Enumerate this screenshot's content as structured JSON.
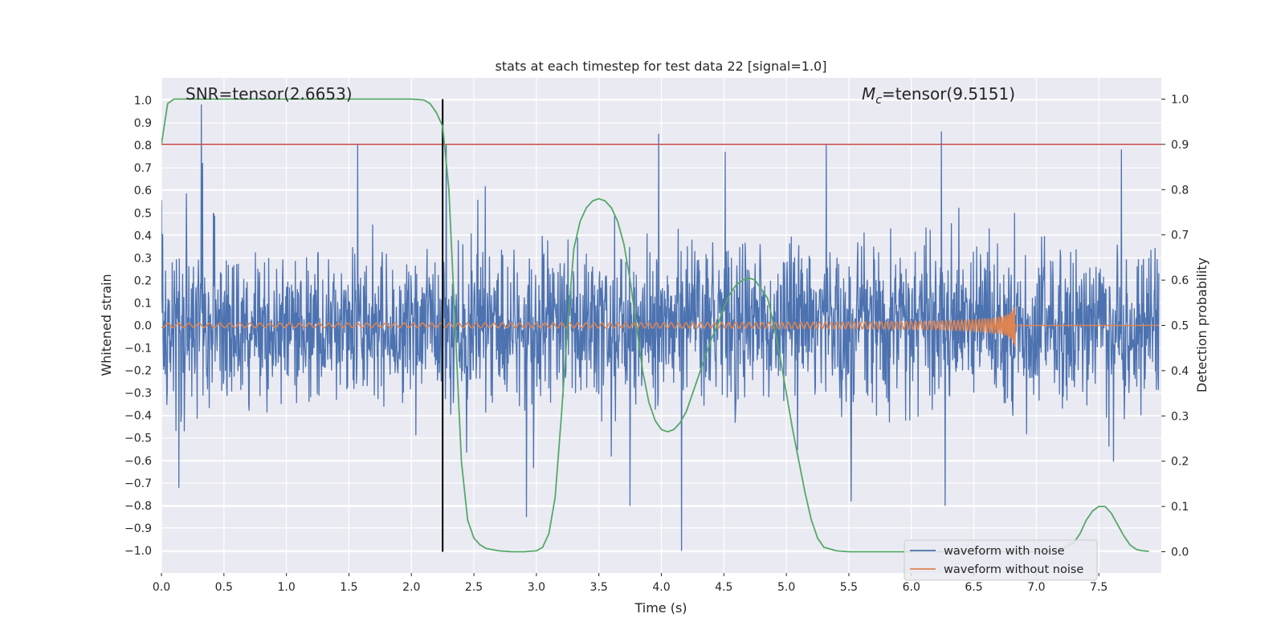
{
  "chart_data": {
    "type": "line",
    "title": "stats at each timestep for test data 22 [signal=1.0]",
    "xlabel": "Time (s)",
    "ylabel": "Whitened strain",
    "y2label": "Detection probability",
    "xlim": [
      0.0,
      8.0
    ],
    "ylim": [
      -1.1,
      1.1
    ],
    "y2lim": [
      -0.047,
      1.047
    ],
    "x_ticks": [
      0.0,
      0.5,
      1.0,
      1.5,
      2.0,
      2.5,
      3.0,
      3.5,
      4.0,
      4.5,
      5.0,
      5.5,
      6.0,
      6.5,
      7.0,
      7.5
    ],
    "x_tick_labels": [
      "0.0",
      "0.5",
      "1.0",
      "1.5",
      "2.0",
      "2.5",
      "3.0",
      "3.5",
      "4.0",
      "4.5",
      "5.0",
      "5.5",
      "6.0",
      "6.5",
      "7.0",
      "7.5"
    ],
    "y_ticks": [
      1.0,
      0.9,
      0.8,
      0.7,
      0.6,
      0.5,
      0.4,
      0.3,
      0.2,
      0.1,
      0.0,
      -0.1,
      -0.2,
      -0.3,
      -0.4,
      -0.5,
      -0.6,
      -0.7,
      -0.8,
      -0.9,
      -1.0
    ],
    "y_tick_labels": [
      "1.0",
      "0.9",
      "0.8",
      "0.7",
      "0.6",
      "0.5",
      "0.4",
      "0.3",
      "0.2",
      "0.1",
      "0.0",
      "−0.1",
      "−0.2",
      "−0.3",
      "−0.4",
      "−0.5",
      "−0.6",
      "−0.7",
      "−0.8",
      "−0.9",
      "−1.0"
    ],
    "y2_ticks": [
      1.0,
      0.9,
      0.8,
      0.7,
      0.6,
      0.5,
      0.4,
      0.3,
      0.2,
      0.1,
      0.0
    ],
    "y2_tick_labels": [
      "1.0",
      "0.9",
      "0.8",
      "0.7",
      "0.6",
      "0.5",
      "0.4",
      "0.3",
      "0.2",
      "0.1",
      "0.0"
    ],
    "grid": true,
    "legend_position": "bottom-right",
    "annotations": {
      "snr": "SNR=tensor(2.6653)",
      "mc_symbol": "M",
      "mc_subscript": "c",
      "mc_value": "=tensor(9.5151)"
    },
    "threshold_line": {
      "y2": 0.9,
      "color": "#c44e52"
    },
    "vertical_marker": {
      "x": 2.25,
      "y2_from": 0.0,
      "y2_to": 1.0,
      "color": "#000000"
    },
    "series": [
      {
        "name": "waveform with noise",
        "color": "#4c72b0",
        "description_axis": "left",
        "noise_envelope_typical": 0.35,
        "peaks": [
          {
            "x": 0.32,
            "y": 0.98
          },
          {
            "x": 0.33,
            "y": 0.72
          },
          {
            "x": 1.57,
            "y": 0.8
          },
          {
            "x": 2.28,
            "y": 0.8
          },
          {
            "x": 3.98,
            "y": 0.85
          },
          {
            "x": 4.51,
            "y": 0.77
          },
          {
            "x": 5.32,
            "y": 0.8
          },
          {
            "x": 6.24,
            "y": 0.86
          },
          {
            "x": 7.68,
            "y": 0.78
          },
          {
            "x": 4.16,
            "y": -1.0
          },
          {
            "x": 0.14,
            "y": -0.72
          },
          {
            "x": 2.92,
            "y": -0.85
          },
          {
            "x": 3.75,
            "y": -0.8
          },
          {
            "x": 5.52,
            "y": -0.78
          },
          {
            "x": 6.27,
            "y": -0.8
          }
        ]
      },
      {
        "name": "waveform without noise",
        "color": "#dd8452",
        "description_axis": "left",
        "chirp_start": 0.0,
        "merger_time": 6.83,
        "amplitude_start": 0.006,
        "amplitude_peak": 0.1
      },
      {
        "name": "detection probability",
        "color": "#55a868",
        "description_axis": "right",
        "x": [
          0.0,
          0.05,
          0.1,
          0.15,
          0.2,
          0.3,
          0.5,
          1.0,
          1.5,
          2.0,
          2.1,
          2.15,
          2.2,
          2.25,
          2.3,
          2.35,
          2.4,
          2.45,
          2.5,
          2.55,
          2.6,
          2.7,
          2.8,
          2.9,
          3.0,
          3.05,
          3.1,
          3.15,
          3.2,
          3.25,
          3.3,
          3.35,
          3.4,
          3.45,
          3.5,
          3.55,
          3.6,
          3.65,
          3.7,
          3.75,
          3.8,
          3.85,
          3.9,
          3.95,
          4.0,
          4.05,
          4.1,
          4.15,
          4.2,
          4.25,
          4.3,
          4.35,
          4.4,
          4.45,
          4.5,
          4.55,
          4.6,
          4.65,
          4.7,
          4.75,
          4.8,
          4.85,
          4.9,
          4.95,
          5.0,
          5.05,
          5.1,
          5.15,
          5.2,
          5.25,
          5.3,
          5.4,
          5.5,
          6.0,
          6.5,
          7.0,
          7.1,
          7.2,
          7.3,
          7.35,
          7.4,
          7.45,
          7.5,
          7.55,
          7.6,
          7.65,
          7.7,
          7.75,
          7.8,
          7.85,
          7.9
        ],
        "y": [
          0.9,
          0.99,
          1.0,
          1.0,
          1.0,
          1.0,
          1.0,
          1.0,
          1.0,
          1.0,
          0.998,
          0.99,
          0.97,
          0.94,
          0.8,
          0.5,
          0.2,
          0.07,
          0.03,
          0.015,
          0.007,
          0.002,
          0.0,
          0.0,
          0.002,
          0.01,
          0.04,
          0.12,
          0.3,
          0.5,
          0.67,
          0.73,
          0.76,
          0.775,
          0.78,
          0.775,
          0.76,
          0.73,
          0.68,
          0.6,
          0.5,
          0.4,
          0.33,
          0.29,
          0.27,
          0.265,
          0.27,
          0.285,
          0.31,
          0.35,
          0.39,
          0.43,
          0.47,
          0.5,
          0.54,
          0.57,
          0.59,
          0.6,
          0.605,
          0.6,
          0.58,
          0.56,
          0.5,
          0.43,
          0.35,
          0.27,
          0.2,
          0.13,
          0.07,
          0.03,
          0.01,
          0.002,
          0.0,
          0.0,
          0.0,
          0.0,
          0.001,
          0.005,
          0.02,
          0.04,
          0.07,
          0.09,
          0.1,
          0.1,
          0.085,
          0.06,
          0.035,
          0.015,
          0.005,
          0.002,
          0.001
        ]
      }
    ]
  }
}
